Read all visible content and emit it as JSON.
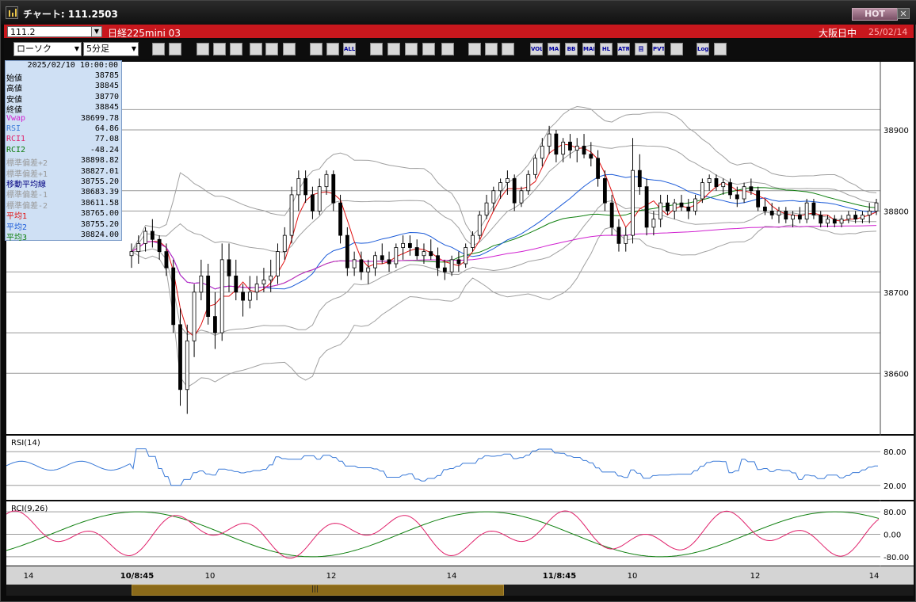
{
  "window": {
    "title": "チャート: 111.2503",
    "hot_label": "HOT",
    "close_label": "✕"
  },
  "header": {
    "code": "111.2",
    "instrument": "日経225mini 03",
    "session": "大阪日中",
    "date": "25/02/14"
  },
  "toolbar": {
    "chart_type": "ローソク",
    "interval": "5分足",
    "buttons": [
      {
        "name": "zoom-icon",
        "label": ""
      },
      {
        "name": "crosshair-icon",
        "label": ""
      },
      {
        "name": "trendline-icon",
        "label": ""
      },
      {
        "name": "draw-icon",
        "label": ""
      },
      {
        "name": "pointer-icon",
        "label": ""
      },
      {
        "name": "flag-icon",
        "label": ""
      },
      {
        "name": "note-icon",
        "label": ""
      },
      {
        "name": "trash-icon",
        "label": ""
      },
      {
        "name": "candle-icon",
        "label": ""
      },
      {
        "name": "candle2-icon",
        "label": ""
      },
      {
        "name": "all-icon",
        "label": "ALL"
      },
      {
        "name": "target-icon",
        "label": ""
      },
      {
        "name": "search-chart-icon",
        "label": ""
      },
      {
        "name": "bar-icon",
        "label": ""
      },
      {
        "name": "split-icon",
        "label": ""
      },
      {
        "name": "scale-icon",
        "label": ""
      },
      {
        "name": "grid-icon",
        "label": ""
      },
      {
        "name": "tools-icon",
        "label": ""
      },
      {
        "name": "color-icon",
        "label": ""
      },
      {
        "name": "vol-icon",
        "label": "VOL"
      },
      {
        "name": "ma-icon",
        "label": "MA"
      },
      {
        "name": "bb-icon",
        "label": "BB"
      },
      {
        "name": "mae-icon",
        "label": "MAE"
      },
      {
        "name": "hl-icon",
        "label": "HL"
      },
      {
        "name": "atr-icon",
        "label": "ATR"
      },
      {
        "name": "ichimoku-icon",
        "label": "目"
      },
      {
        "name": "pvt-icon",
        "label": "PVT"
      },
      {
        "name": "frame-icon",
        "label": ""
      },
      {
        "name": "log-icon",
        "label": "Log"
      },
      {
        "name": "export-icon",
        "label": ""
      }
    ]
  },
  "info": {
    "datetime": "2025/02/10 10:00:00",
    "rows": [
      {
        "label": "始値",
        "value": "38785",
        "color": "#000000"
      },
      {
        "label": "高値",
        "value": "38845",
        "color": "#000000"
      },
      {
        "label": "安値",
        "value": "38770",
        "color": "#000000"
      },
      {
        "label": "終値",
        "value": "38845",
        "color": "#000000"
      },
      {
        "label": "Vwap",
        "value": "38699.78",
        "color": "#d020d0"
      },
      {
        "label": "RSI",
        "value": "64.86",
        "color": "#3a7ad8"
      },
      {
        "label": "RCI1",
        "value": "77.08",
        "color": "#e0206a"
      },
      {
        "label": "RCI2",
        "value": "-48.24",
        "color": "#0a7a0a"
      },
      {
        "label": "標準偏差+2",
        "value": "38898.82",
        "color": "#9a9a9a"
      },
      {
        "label": "標準偏差+1",
        "value": "38827.01",
        "color": "#9a9a9a"
      },
      {
        "label": "移動平均線",
        "value": "38755.20",
        "color": "#000080"
      },
      {
        "label": "標準偏差-1",
        "value": "38683.39",
        "color": "#9a9a9a"
      },
      {
        "label": "標準偏差-2",
        "value": "38611.58",
        "color": "#9a9a9a"
      },
      {
        "label": "平均1",
        "value": "38765.00",
        "color": "#e01010"
      },
      {
        "label": "平均2",
        "value": "38755.20",
        "color": "#1a5ad8"
      },
      {
        "label": "平均3",
        "value": "38824.00",
        "color": "#108010"
      }
    ]
  },
  "chart_data": {
    "type": "candlestick",
    "y_axis_ticks": [
      38900,
      38800,
      38700,
      38600
    ],
    "ylim": [
      38530,
      38980
    ],
    "x_tick_labels": [
      "14",
      "10/8:45",
      "10",
      "12",
      "14",
      "11/8:45",
      "10",
      "12",
      "14"
    ],
    "candles": [
      [
        38745,
        38760,
        38730,
        38750
      ],
      [
        38750,
        38770,
        38735,
        38760
      ],
      [
        38760,
        38780,
        38750,
        38775
      ],
      [
        38775,
        38790,
        38755,
        38765
      ],
      [
        38765,
        38770,
        38740,
        38750
      ],
      [
        38750,
        38760,
        38720,
        38730
      ],
      [
        38730,
        38740,
        38650,
        38660
      ],
      [
        38660,
        38680,
        38560,
        38580
      ],
      [
        38580,
        38660,
        38550,
        38640
      ],
      [
        38640,
        38710,
        38620,
        38700
      ],
      [
        38700,
        38740,
        38690,
        38720
      ],
      [
        38720,
        38735,
        38660,
        38670
      ],
      [
        38670,
        38700,
        38630,
        38650
      ],
      [
        38650,
        38760,
        38640,
        38740
      ],
      [
        38740,
        38760,
        38700,
        38720
      ],
      [
        38720,
        38740,
        38690,
        38700
      ],
      [
        38700,
        38710,
        38670,
        38690
      ],
      [
        38690,
        38720,
        38680,
        38700
      ],
      [
        38700,
        38720,
        38690,
        38710
      ],
      [
        38710,
        38730,
        38700,
        38715
      ],
      [
        38715,
        38740,
        38700,
        38720
      ],
      [
        38720,
        38760,
        38710,
        38750
      ],
      [
        38750,
        38780,
        38740,
        38770
      ],
      [
        38770,
        38830,
        38760,
        38820
      ],
      [
        38820,
        38850,
        38800,
        38840
      ],
      [
        38840,
        38850,
        38810,
        38820
      ],
      [
        38820,
        38830,
        38790,
        38800
      ],
      [
        38800,
        38840,
        38795,
        38830
      ],
      [
        38830,
        38850,
        38820,
        38845
      ],
      [
        38845,
        38850,
        38800,
        38810
      ],
      [
        38810,
        38820,
        38760,
        38770
      ],
      [
        38770,
        38780,
        38720,
        38730
      ],
      [
        38730,
        38750,
        38720,
        38740
      ],
      [
        38740,
        38750,
        38715,
        38725
      ],
      [
        38725,
        38740,
        38710,
        38730
      ],
      [
        38730,
        38750,
        38720,
        38745
      ],
      [
        38745,
        38760,
        38735,
        38740
      ],
      [
        38740,
        38750,
        38725,
        38735
      ],
      [
        38735,
        38760,
        38730,
        38755
      ],
      [
        38755,
        38770,
        38740,
        38760
      ],
      [
        38760,
        38770,
        38745,
        38755
      ],
      [
        38755,
        38765,
        38740,
        38745
      ],
      [
        38745,
        38760,
        38735,
        38750
      ],
      [
        38750,
        38765,
        38740,
        38745
      ],
      [
        38745,
        38755,
        38720,
        38730
      ],
      [
        38730,
        38740,
        38715,
        38725
      ],
      [
        38725,
        38745,
        38720,
        38740
      ],
      [
        38740,
        38750,
        38725,
        38735
      ],
      [
        38735,
        38760,
        38730,
        38755
      ],
      [
        38755,
        38775,
        38750,
        38770
      ],
      [
        38770,
        38800,
        38765,
        38795
      ],
      [
        38795,
        38820,
        38790,
        38810
      ],
      [
        38810,
        38830,
        38800,
        38825
      ],
      [
        38825,
        38840,
        38815,
        38835
      ],
      [
        38835,
        38850,
        38820,
        38840
      ],
      [
        38840,
        38845,
        38800,
        38810
      ],
      [
        38810,
        38830,
        38805,
        38825
      ],
      [
        38825,
        38850,
        38820,
        38845
      ],
      [
        38845,
        38870,
        38840,
        38865
      ],
      [
        38865,
        38890,
        38855,
        38880
      ],
      [
        38880,
        38905,
        38870,
        38895
      ],
      [
        38895,
        38900,
        38860,
        38870
      ],
      [
        38870,
        38890,
        38860,
        38885
      ],
      [
        38885,
        38895,
        38865,
        38875
      ],
      [
        38875,
        38890,
        38860,
        38880
      ],
      [
        38880,
        38895,
        38865,
        38870
      ],
      [
        38870,
        38885,
        38855,
        38865
      ],
      [
        38865,
        38875,
        38830,
        38840
      ],
      [
        38840,
        38850,
        38800,
        38810
      ],
      [
        38810,
        38820,
        38770,
        38780
      ],
      [
        38780,
        38790,
        38750,
        38760
      ],
      [
        38760,
        38780,
        38750,
        38770
      ],
      [
        38770,
        38890,
        38760,
        38850
      ],
      [
        38850,
        38870,
        38820,
        38830
      ],
      [
        38830,
        38840,
        38770,
        38780
      ],
      [
        38780,
        38800,
        38770,
        38790
      ],
      [
        38790,
        38820,
        38780,
        38810
      ],
      [
        38810,
        38820,
        38795,
        38800
      ],
      [
        38800,
        38815,
        38790,
        38810
      ],
      [
        38810,
        38820,
        38800,
        38805
      ],
      [
        38805,
        38815,
        38790,
        38800
      ],
      [
        38800,
        38820,
        38795,
        38815
      ],
      [
        38815,
        38840,
        38810,
        38835
      ],
      [
        38835,
        38845,
        38825,
        38840
      ],
      [
        38840,
        38845,
        38825,
        38830
      ],
      [
        38830,
        38840,
        38820,
        38835
      ],
      [
        38835,
        38840,
        38815,
        38820
      ],
      [
        38820,
        38830,
        38805,
        38815
      ],
      [
        38815,
        38835,
        38810,
        38830
      ],
      [
        38830,
        38840,
        38820,
        38825
      ],
      [
        38825,
        38830,
        38800,
        38805
      ],
      [
        38805,
        38815,
        38795,
        38800
      ],
      [
        38800,
        38810,
        38790,
        38795
      ],
      [
        38795,
        38805,
        38785,
        38800
      ],
      [
        38800,
        38805,
        38785,
        38790
      ],
      [
        38790,
        38800,
        38780,
        38795
      ],
      [
        38795,
        38805,
        38785,
        38790
      ],
      [
        38790,
        38815,
        38785,
        38810
      ],
      [
        38810,
        38815,
        38790,
        38795
      ],
      [
        38795,
        38800,
        38780,
        38785
      ],
      [
        38785,
        38795,
        38780,
        38790
      ],
      [
        38790,
        38795,
        38780,
        38785
      ],
      [
        38785,
        38795,
        38780,
        38790
      ],
      [
        38790,
        38800,
        38785,
        38795
      ],
      [
        38795,
        38800,
        38785,
        38790
      ],
      [
        38790,
        38800,
        38785,
        38795
      ],
      [
        38795,
        38810,
        38785,
        38800
      ],
      [
        38800,
        38815,
        38795,
        38810
      ]
    ]
  },
  "panels": {
    "rsi": {
      "label": "RSI(14)",
      "ticks": [
        "80.00",
        "20.00"
      ]
    },
    "rci": {
      "label": "RCI(9,26)",
      "ticks": [
        "80.00",
        "0.00",
        "-80.00"
      ]
    }
  },
  "colors": {
    "bg": "#ffffff",
    "grid": "#9a9a9a",
    "ma_red": "#e01010",
    "ma_blue": "#1a5ad8",
    "ma_green": "#108010",
    "vwap": "#d020d0",
    "band": "#a0a0a0"
  }
}
